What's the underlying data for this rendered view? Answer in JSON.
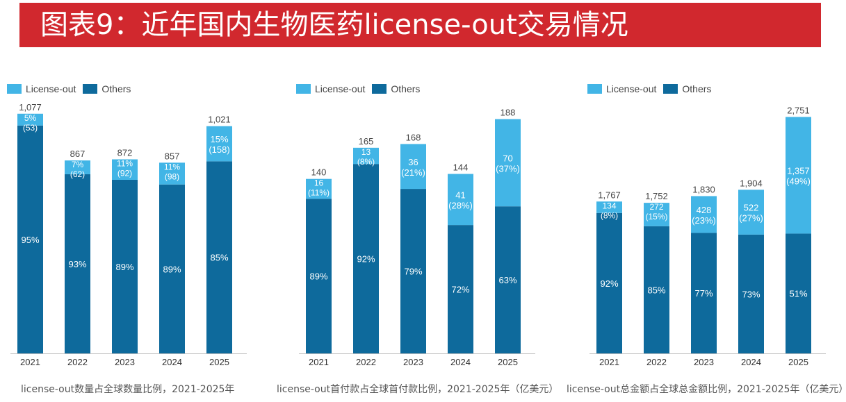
{
  "title": "图表9：近年国内生物医药license-out交易情况",
  "colors": {
    "license_out": "#42b5e6",
    "others": "#0e6a9c",
    "title_bg": "#d1282e"
  },
  "chart_data": [
    {
      "type": "bar",
      "stacked": true,
      "caption": "license-out数量占全球数量比例，2021-2025年",
      "legend": [
        "License-out",
        "Others"
      ],
      "categories": [
        "2021",
        "2022",
        "2023",
        "2024",
        "2025"
      ],
      "totals": [
        "1,077",
        "867",
        "872",
        "857",
        "1,021"
      ],
      "series": [
        {
          "name": "License-out",
          "values": [
            53,
            62,
            92,
            98,
            158
          ],
          "labels": [
            "5%",
            "7%",
            "11%",
            "11%",
            "15%"
          ],
          "sublabels": [
            "(53)",
            "(62)",
            "(92)",
            "(98)",
            "(158)"
          ]
        },
        {
          "name": "Others",
          "values": [
            1024,
            805,
            780,
            759,
            863
          ],
          "labels": [
            "95%",
            "93%",
            "89%",
            "89%",
            "85%"
          ]
        }
      ],
      "ylim": [
        0,
        1120
      ]
    },
    {
      "type": "bar",
      "stacked": true,
      "caption": "license-out首付款占全球首付款比例，2021-2025年（亿美元）",
      "legend": [
        "License-out",
        "Others"
      ],
      "categories": [
        "2021",
        "2022",
        "2023",
        "2024",
        "2025"
      ],
      "totals": [
        "140",
        "165",
        "168",
        "144",
        "188"
      ],
      "series": [
        {
          "name": "License-out",
          "values": [
            16,
            13,
            36,
            41,
            70
          ],
          "labels": [
            "16",
            "13",
            "36",
            "41",
            "70"
          ],
          "sublabels": [
            "(11%)",
            "(8%)",
            "(21%)",
            "(28%)",
            "(37%)"
          ]
        },
        {
          "name": "Others",
          "values": [
            124,
            152,
            132,
            103,
            118
          ],
          "labels": [
            "89%",
            "92%",
            "79%",
            "72%",
            "63%"
          ]
        }
      ],
      "ylim": [
        0,
        200
      ]
    },
    {
      "type": "bar",
      "stacked": true,
      "caption": "license-out总金额占全球总金额比例，2021-2025年（亿美元）",
      "legend": [
        "License-out",
        "Others"
      ],
      "categories": [
        "2021",
        "2022",
        "2023",
        "2024",
        "2025"
      ],
      "totals": [
        "1,767",
        "1,752",
        "1,830",
        "1,904",
        "2,751"
      ],
      "series": [
        {
          "name": "License-out",
          "values": [
            134,
            272,
            428,
            522,
            1357
          ],
          "labels": [
            "134",
            "272",
            "428",
            "522",
            "1,357"
          ],
          "sublabels": [
            "(8%)",
            "(15%)",
            "(23%)",
            "(27%)",
            "(49%)"
          ]
        },
        {
          "name": "Others",
          "values": [
            1633,
            1480,
            1402,
            1382,
            1394
          ],
          "labels": [
            "92%",
            "85%",
            "77%",
            "73%",
            "51%"
          ]
        }
      ],
      "ylim": [
        0,
        2900
      ]
    }
  ]
}
